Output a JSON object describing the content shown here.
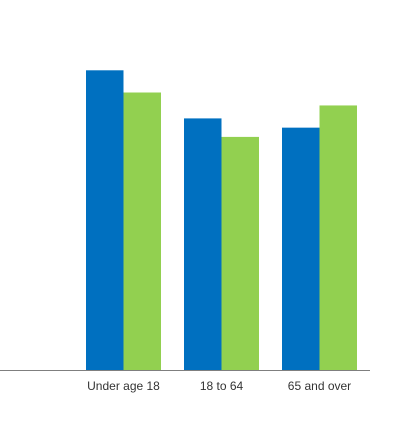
{
  "chart_data": {
    "type": "bar",
    "categories": [
      "Under age 18",
      "18 to 64",
      "65 and over"
    ],
    "series": [
      {
        "values": [
          16.2,
          13.6,
          13.1
        ],
        "color": "#0070c0"
      },
      {
        "values": [
          15.0,
          12.6,
          14.3
        ],
        "color": "#92d050"
      }
    ],
    "ylim": [
      0,
      20
    ],
    "grid": false,
    "legend": "none",
    "axis_line_color": "#7f7f7f"
  }
}
